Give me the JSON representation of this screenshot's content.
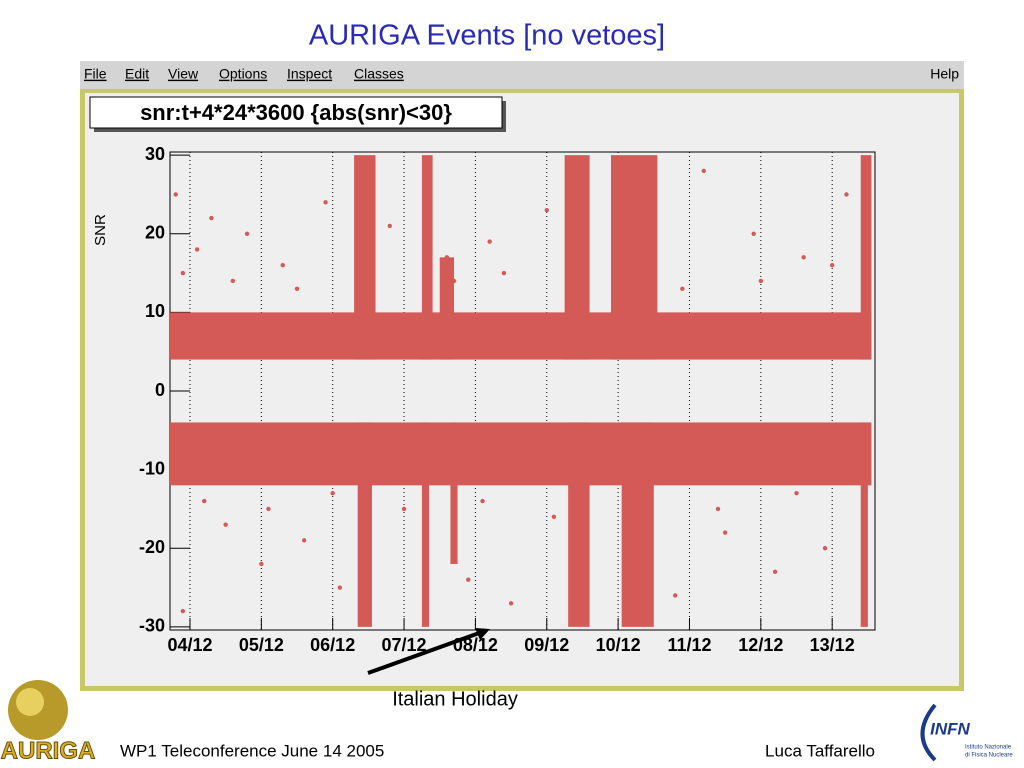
{
  "slide": {
    "title": "AURIGA Events [no vetoes]",
    "annotation": "Italian Holiday",
    "footer_left": "WP1 Teleconference June 14 2005",
    "footer_right": "Luca Taffarello"
  },
  "window": {
    "menu": [
      "File",
      "Edit",
      "View",
      "Options",
      "Inspect",
      "Classes"
    ],
    "help": "Help"
  },
  "logos": {
    "left": "AURIGA",
    "right": "INFN",
    "right_caption_1": "Istituto Nazionale",
    "right_caption_2": "di Fisica Nucleare"
  },
  "chart_data": {
    "type": "scatter",
    "title": "snr:t+4*24*3600 {abs(snr)<30}",
    "y_label": "SNR",
    "color": "#d45a57",
    "grid": true,
    "xlim": [
      3.72,
      13.6
    ],
    "ylim": [
      -30.4,
      30.4
    ],
    "xticks": [
      {
        "value": 4,
        "label": "04/12"
      },
      {
        "value": 5,
        "label": "05/12"
      },
      {
        "value": 6,
        "label": "06/12"
      },
      {
        "value": 7,
        "label": "07/12"
      },
      {
        "value": 8,
        "label": "08/12"
      },
      {
        "value": 9,
        "label": "09/12"
      },
      {
        "value": 10,
        "label": "10/12"
      },
      {
        "value": 11,
        "label": "11/12"
      },
      {
        "value": 12,
        "label": "12/12"
      },
      {
        "value": 13,
        "label": "13/12"
      }
    ],
    "yticks": [
      -30,
      -20,
      -10,
      0,
      10,
      20,
      30
    ],
    "regions": [
      {
        "x0": 3.72,
        "x1": 13.55,
        "y0": 4,
        "y1": 10
      },
      {
        "x0": 3.72,
        "x1": 13.55,
        "y0": -12,
        "y1": -4
      },
      {
        "x0": 6.3,
        "x1": 6.6,
        "y0": 4,
        "y1": 30
      },
      {
        "x0": 7.25,
        "x1": 7.4,
        "y0": 4,
        "y1": 30
      },
      {
        "x0": 7.5,
        "x1": 7.7,
        "y0": 4,
        "y1": 17
      },
      {
        "x0": 9.25,
        "x1": 9.6,
        "y0": 4,
        "y1": 30
      },
      {
        "x0": 9.9,
        "x1": 10.55,
        "y0": 4,
        "y1": 30
      },
      {
        "x0": 13.4,
        "x1": 13.55,
        "y0": 4,
        "y1": 30
      },
      {
        "x0": 6.35,
        "x1": 6.55,
        "y0": -30,
        "y1": -4
      },
      {
        "x0": 7.25,
        "x1": 7.35,
        "y0": -30,
        "y1": -4
      },
      {
        "x0": 7.65,
        "x1": 7.75,
        "y0": -22,
        "y1": -4
      },
      {
        "x0": 9.3,
        "x1": 9.6,
        "y0": -30,
        "y1": -4
      },
      {
        "x0": 10.05,
        "x1": 10.5,
        "y0": -30,
        "y1": -4
      },
      {
        "x0": 13.4,
        "x1": 13.5,
        "y0": -30,
        "y1": -4
      }
    ],
    "x": [
      3.8,
      3.9,
      4.1,
      4.3,
      4.5,
      4.8,
      5.0,
      5.3,
      5.6,
      5.9,
      6.1,
      6.8,
      7.0,
      7.6,
      7.9,
      8.2,
      8.5,
      9.0,
      10.8,
      11.2,
      11.5,
      11.9,
      12.2,
      12.6,
      12.9,
      13.2,
      3.9,
      4.2,
      4.6,
      5.1,
      5.5,
      6.0,
      7.7,
      8.1,
      8.4,
      9.1,
      10.9,
      11.4,
      12.0,
      12.5,
      13.0
    ],
    "y": [
      25,
      -28,
      18,
      22,
      -17,
      20,
      -22,
      16,
      -19,
      24,
      -25,
      21,
      -15,
      17,
      -24,
      19,
      -27,
      23,
      -26,
      28,
      -18,
      20,
      -23,
      17,
      -20,
      25,
      15,
      -14,
      14,
      -15,
      13,
      -13,
      14,
      -14,
      15,
      -16,
      13,
      -15,
      14,
      -13,
      16
    ]
  }
}
